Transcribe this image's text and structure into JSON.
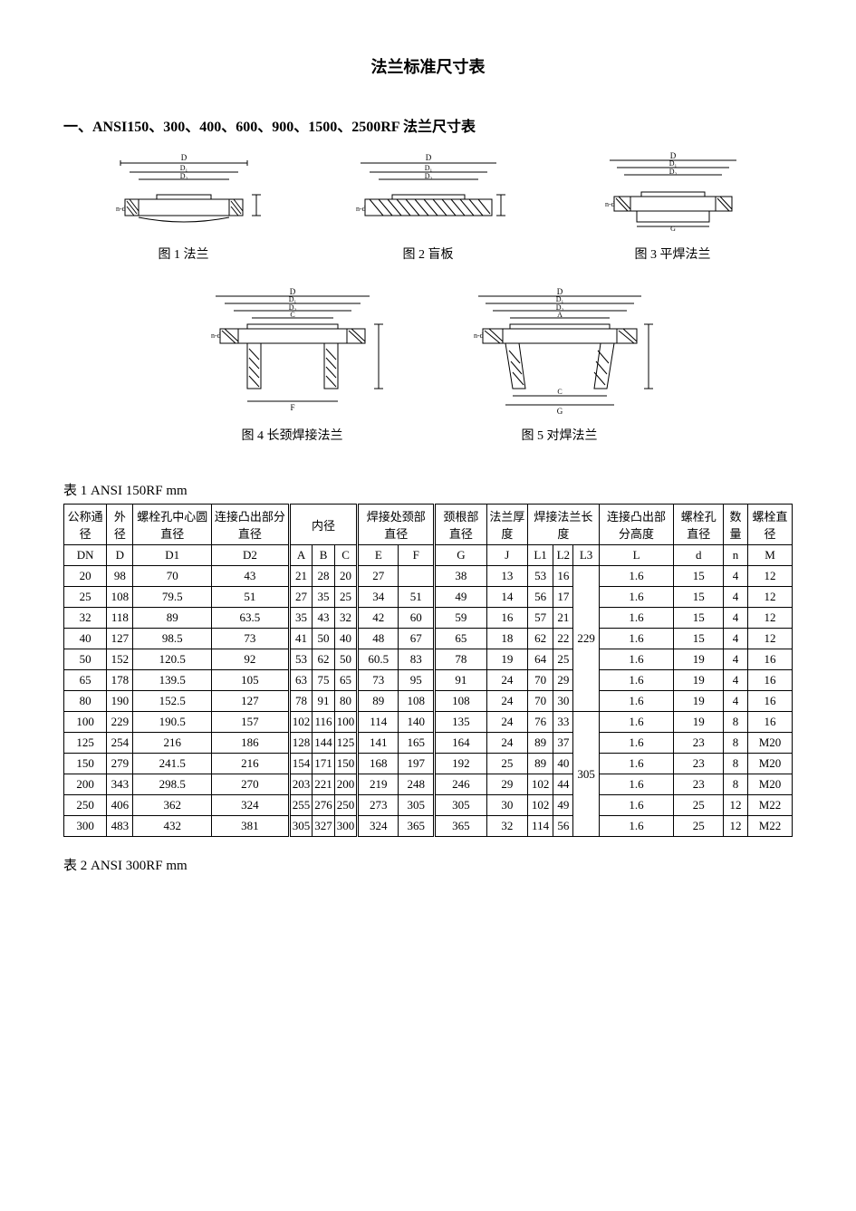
{
  "title": "法兰标准尺寸表",
  "section1_heading": "一、ANSI150、300、400、600、900、1500、2500RF 法兰尺寸表",
  "figures": {
    "f1": "图 1 法兰",
    "f2": "图 2 盲板",
    "f3": "图 3 平焊法兰",
    "f4": "图 4 长颈焊接法兰",
    "f5": "图 5 对焊法兰"
  },
  "table1": {
    "caption": "表 1 ANSI 150RF      mm",
    "header_row1": {
      "c1": "公称通径",
      "c2": "外径",
      "c3": "螺栓孔中心圆直径",
      "c4": "连接凸出部分直径",
      "c5": "内径",
      "c6": "焊接处颈部直径",
      "c7": "颈根部直径",
      "c8": "法兰厚度",
      "c9": "焊接法兰长度",
      "c10": "连接凸出部分高度",
      "c11": "螺栓孔直径",
      "c12": "数量",
      "c13": "螺栓直径"
    },
    "header_row2": {
      "c1": "DN",
      "c2": "D",
      "c3": "D1",
      "c4": "D2",
      "c5a": "A",
      "c5b": "B",
      "c5c": "C",
      "c6a": "E",
      "c6b": "F",
      "c7": "G",
      "c8": "J",
      "c9a": "L1",
      "c9b": "L2",
      "c9c": "L3",
      "c10": "L",
      "c11": "d",
      "c12": "n",
      "c13": "M"
    },
    "rows": [
      {
        "DN": "20",
        "D": "98",
        "D1": "70",
        "D2": "43",
        "A": "21",
        "B": "28",
        "C": "20",
        "E": "27",
        "F": "",
        "G": "38",
        "J": "13",
        "L1": "53",
        "L2": "16",
        "L": "1.6",
        "d": "15",
        "n": "4",
        "M": "12"
      },
      {
        "DN": "25",
        "D": "108",
        "D1": "79.5",
        "D2": "51",
        "A": "27",
        "B": "35",
        "C": "25",
        "E": "34",
        "F": "51",
        "G": "49",
        "J": "14",
        "L1": "56",
        "L2": "17",
        "L": "1.6",
        "d": "15",
        "n": "4",
        "M": "12"
      },
      {
        "DN": "32",
        "D": "118",
        "D1": "89",
        "D2": "63.5",
        "A": "35",
        "B": "43",
        "C": "32",
        "E": "42",
        "F": "60",
        "G": "59",
        "J": "16",
        "L1": "57",
        "L2": "21",
        "L": "1.6",
        "d": "15",
        "n": "4",
        "M": "12"
      },
      {
        "DN": "40",
        "D": "127",
        "D1": "98.5",
        "D2": "73",
        "A": "41",
        "B": "50",
        "C": "40",
        "E": "48",
        "F": "67",
        "G": "65",
        "J": "18",
        "L1": "62",
        "L2": "22",
        "L": "1.6",
        "d": "15",
        "n": "4",
        "M": "12"
      },
      {
        "DN": "50",
        "D": "152",
        "D1": "120.5",
        "D2": "92",
        "A": "53",
        "B": "62",
        "C": "50",
        "E": "60.5",
        "F": "83",
        "G": "78",
        "J": "19",
        "L1": "64",
        "L2": "25",
        "L": "1.6",
        "d": "19",
        "n": "4",
        "M": "16"
      },
      {
        "DN": "65",
        "D": "178",
        "D1": "139.5",
        "D2": "105",
        "A": "63",
        "B": "75",
        "C": "65",
        "E": "73",
        "F": "95",
        "G": "91",
        "J": "24",
        "L1": "70",
        "L2": "29",
        "L": "1.6",
        "d": "19",
        "n": "4",
        "M": "16"
      },
      {
        "DN": "80",
        "D": "190",
        "D1": "152.5",
        "D2": "127",
        "A": "78",
        "B": "91",
        "C": "80",
        "E": "89",
        "F": "108",
        "G": "108",
        "J": "24",
        "L1": "70",
        "L2": "30",
        "L": "1.6",
        "d": "19",
        "n": "4",
        "M": "16"
      },
      {
        "DN": "100",
        "D": "229",
        "D1": "190.5",
        "D2": "157",
        "A": "102",
        "B": "116",
        "C": "100",
        "E": "114",
        "F": "140",
        "G": "135",
        "J": "24",
        "L1": "76",
        "L2": "33",
        "L": "1.6",
        "d": "19",
        "n": "8",
        "M": "16"
      },
      {
        "DN": "125",
        "D": "254",
        "D1": "216",
        "D2": "186",
        "A": "128",
        "B": "144",
        "C": "125",
        "E": "141",
        "F": "165",
        "G": "164",
        "J": "24",
        "L1": "89",
        "L2": "37",
        "L": "1.6",
        "d": "23",
        "n": "8",
        "M": "M20"
      },
      {
        "DN": "150",
        "D": "279",
        "D1": "241.5",
        "D2": "216",
        "A": "154",
        "B": "171",
        "C": "150",
        "E": "168",
        "F": "197",
        "G": "192",
        "J": "25",
        "L1": "89",
        "L2": "40",
        "L": "1.6",
        "d": "23",
        "n": "8",
        "M": "M20"
      },
      {
        "DN": "200",
        "D": "343",
        "D1": "298.5",
        "D2": "270",
        "A": "203",
        "B": "221",
        "C": "200",
        "E": "219",
        "F": "248",
        "G": "246",
        "J": "29",
        "L1": "102",
        "L2": "44",
        "L": "1.6",
        "d": "23",
        "n": "8",
        "M": "M20"
      },
      {
        "DN": "250",
        "D": "406",
        "D1": "362",
        "D2": "324",
        "A": "255",
        "B": "276",
        "C": "250",
        "E": "273",
        "F": "305",
        "G": "305",
        "J": "30",
        "L1": "102",
        "L2": "49",
        "L": "1.6",
        "d": "25",
        "n": "12",
        "M": "M22"
      },
      {
        "DN": "300",
        "D": "483",
        "D1": "432",
        "D2": "381",
        "A": "305",
        "B": "327",
        "C": "300",
        "E": "324",
        "F": "365",
        "G": "365",
        "J": "32",
        "L1": "114",
        "L2": "56",
        "L": "1.6",
        "d": "25",
        "n": "12",
        "M": "M22"
      }
    ],
    "L3_top": "229",
    "L3_bot": "305"
  },
  "table2_caption": "表 2 ANSI 300RF      mm"
}
